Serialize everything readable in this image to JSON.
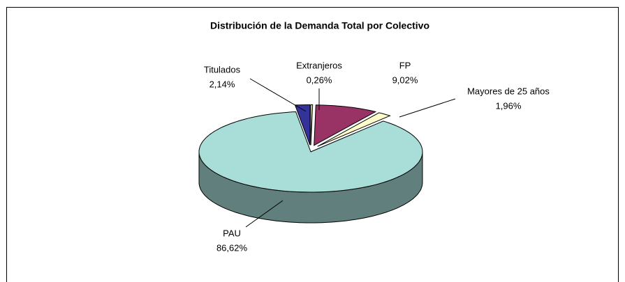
{
  "chart_data": {
    "type": "pie",
    "title": "Distribución de la Demanda Total por Colectivo",
    "categories": [
      "Extranjeros",
      "FP",
      "Mayores de 25 años",
      "PAU",
      "Titulados"
    ],
    "values": [
      0.26,
      9.02,
      1.96,
      86.62,
      2.14
    ],
    "value_labels": [
      "0,26%",
      "9,02%",
      "1,96%",
      "86,62%",
      "2,14%"
    ],
    "colors": [
      "#ffffcc",
      "#993366",
      "#ffffcc",
      "#a8ddd8",
      "#333399"
    ]
  }
}
